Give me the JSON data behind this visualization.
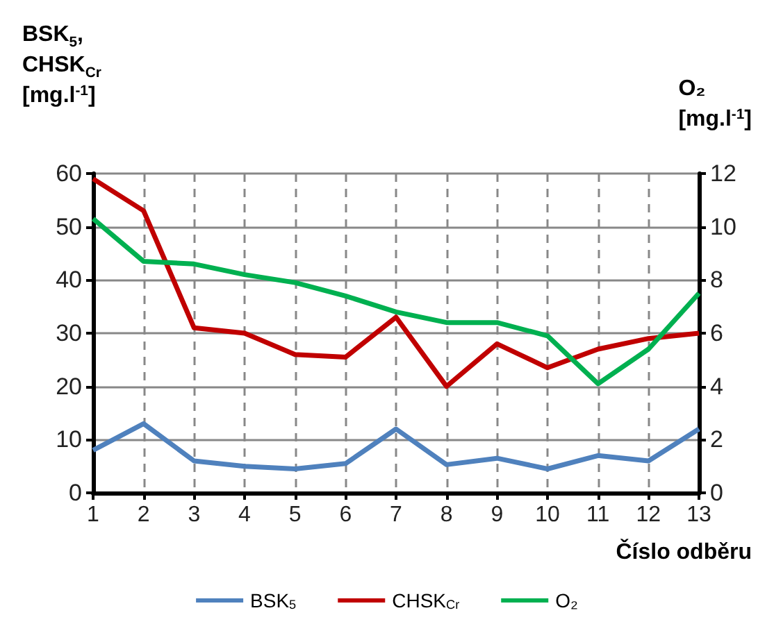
{
  "chart_data": {
    "type": "line",
    "categories": [
      "1",
      "2",
      "3",
      "4",
      "5",
      "6",
      "7",
      "8",
      "9",
      "10",
      "11",
      "12",
      "13"
    ],
    "series": [
      {
        "name": "BSK$_{5}$",
        "color": "#4f81bd",
        "values": [
          8,
          13,
          6,
          5,
          4.5,
          5.5,
          12,
          5.3,
          6.5,
          4.5,
          7,
          6,
          12
        ]
      },
      {
        "name": "CHSK$_{Cr}$",
        "color": "#c00000",
        "values": [
          59,
          53,
          31,
          30,
          26,
          25.5,
          33,
          20,
          28,
          23.5,
          27,
          29,
          30
        ]
      },
      {
        "name": "O₂",
        "color": "#00b050",
        "axis": "y2",
        "values": [
          10.3,
          8.7,
          8.6,
          8.2,
          7.9,
          7.4,
          6.8,
          6.4,
          6.4,
          5.9,
          4.1,
          5.4,
          7.5
        ]
      }
    ],
    "xlabel": "Číslo odběru",
    "ylabel": "BSK$_{5}$,\nCHSK$_{Cr}$\n[mg.l$^{-1}$]",
    "y2label": "O₂\n[mg.l$^{-1}$]",
    "ylim": [
      0,
      60
    ],
    "yticks": [
      0,
      10,
      20,
      30,
      40,
      50,
      60
    ],
    "y2lim": [
      0,
      12
    ],
    "y2ticks": [
      0,
      2,
      4,
      6,
      8,
      10,
      12
    ],
    "grid": true,
    "legend": "bottom",
    "marker": "none",
    "line_style": "solid"
  }
}
